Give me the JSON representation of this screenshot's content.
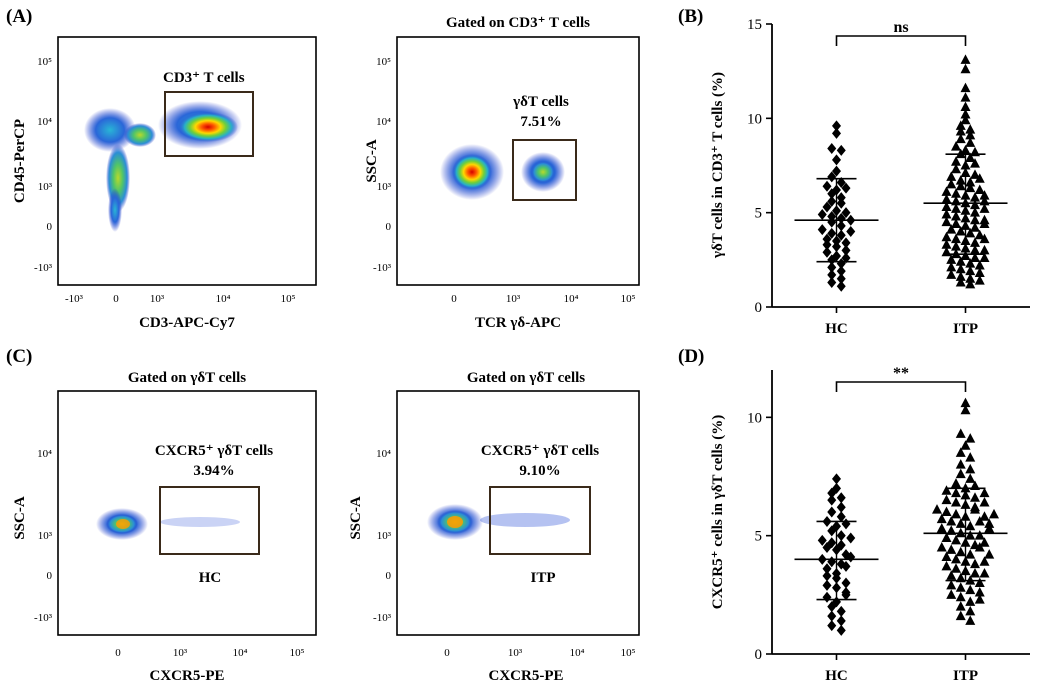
{
  "figure": {
    "panel_A_label": "(A)",
    "panel_B_label": "(B)",
    "panel_C_label": "(C)",
    "panel_D_label": "(D)"
  },
  "flow": [
    {
      "id": "A1",
      "title": "",
      "xlabel": "CD3-APC-Cy7",
      "ylabel": "CD45-PerCP",
      "gate_label": "CD3⁺ T cells",
      "gate_pct": "",
      "sample": "",
      "x_ticks": [
        "-10³",
        "0",
        "10³",
        "10⁴",
        "10⁵"
      ],
      "y_ticks": [
        "10⁵",
        "10⁴",
        "10³",
        "0",
        "-10³"
      ]
    },
    {
      "id": "A2",
      "title": "Gated on CD3⁺ T cells",
      "xlabel": "TCR γδ-APC",
      "ylabel": "SSC-A",
      "gate_label": "γδT cells",
      "gate_pct": "7.51%",
      "sample": "",
      "x_ticks": [
        "0",
        "10³",
        "10⁴",
        "10⁵"
      ],
      "y_ticks": [
        "10⁵",
        "10⁴",
        "10³",
        "0",
        "-10³"
      ]
    },
    {
      "id": "C1",
      "title": "Gated on γδT cells",
      "xlabel": "CXCR5-PE",
      "ylabel": "SSC-A",
      "gate_label": "CXCR5⁺ γδT cells",
      "gate_pct": "3.94%",
      "sample": "HC",
      "x_ticks": [
        "0",
        "10³",
        "10⁴",
        "10⁵"
      ],
      "y_ticks": [
        "10⁴",
        "10³",
        "0",
        "-10³"
      ]
    },
    {
      "id": "C2",
      "title": "Gated on γδT cells",
      "xlabel": "CXCR5-PE",
      "ylabel": "SSC-A",
      "gate_label": "CXCR5⁺ γδT cells",
      "gate_pct": "9.10%",
      "sample": "ITP",
      "x_ticks": [
        "0",
        "10³",
        "10⁴",
        "10⁵"
      ],
      "y_ticks": [
        "10⁴",
        "10³",
        "0",
        "-10³"
      ]
    }
  ],
  "chart_data": [
    {
      "id": "B",
      "type": "scatter",
      "title": "",
      "xlabel": "",
      "ylabel": "γδT cells in CD3⁺ T cells (%)",
      "categories": [
        "HC",
        "ITP"
      ],
      "ylim": [
        0,
        15
      ],
      "y_ticks": [
        0,
        5,
        10,
        15
      ],
      "significance": "ns",
      "series": [
        {
          "name": "HC",
          "marker": "diamond",
          "mean": 4.6,
          "sd_low": 2.4,
          "sd_high": 6.8,
          "values": [
            9.6,
            9.2,
            8.4,
            8.3,
            7.8,
            7.2,
            6.9,
            6.6,
            6.4,
            6.2,
            6.0,
            5.8,
            5.6,
            5.5,
            5.3,
            5.1,
            4.9,
            4.8,
            4.7,
            4.6,
            4.5,
            4.3,
            4.1,
            3.9,
            3.8,
            3.6,
            3.5,
            3.3,
            3.2,
            3.0,
            2.9,
            2.7,
            2.5,
            2.3,
            2.1,
            1.9,
            1.7,
            1.5,
            1.3,
            1.1,
            5.0,
            4.0,
            3.4,
            6.3,
            2.6
          ]
        },
        {
          "name": "ITP",
          "marker": "triangle",
          "mean": 5.5,
          "sd_low": 2.8,
          "sd_high": 8.1,
          "values": [
            13.1,
            12.6,
            11.6,
            11.1,
            10.6,
            10.2,
            9.9,
            9.6,
            9.3,
            9.1,
            8.9,
            8.7,
            8.5,
            8.3,
            8.1,
            7.9,
            7.7,
            7.5,
            7.3,
            7.1,
            6.9,
            6.7,
            6.5,
            6.4,
            6.3,
            6.2,
            6.1,
            6.0,
            5.9,
            5.8,
            5.7,
            5.6,
            5.5,
            5.4,
            5.3,
            5.2,
            5.1,
            5.0,
            4.9,
            4.8,
            4.7,
            4.6,
            4.5,
            4.4,
            4.3,
            4.2,
            4.1,
            4.0,
            3.9,
            3.8,
            3.7,
            3.6,
            3.5,
            3.4,
            3.3,
            3.2,
            3.1,
            3.0,
            2.9,
            2.8,
            2.7,
            2.6,
            2.5,
            2.4,
            2.3,
            2.2,
            2.1,
            2.0,
            1.9,
            1.8,
            1.7,
            1.6,
            1.5,
            1.4,
            1.3,
            1.2,
            6.6,
            5.9,
            5.2,
            4.6,
            7.0,
            3.6,
            4.4,
            6.8,
            5.6,
            2.6,
            3.0,
            7.6,
            8.2,
            9.4
          ]
        }
      ]
    },
    {
      "id": "D",
      "type": "scatter",
      "title": "",
      "xlabel": "",
      "ylabel": "CXCR5⁺ cells in γδT cells (%)",
      "categories": [
        "HC",
        "ITP"
      ],
      "ylim": [
        0,
        12
      ],
      "y_ticks": [
        0,
        5,
        10
      ],
      "significance": "**",
      "series": [
        {
          "name": "HC",
          "marker": "diamond",
          "mean": 4.0,
          "sd_low": 2.3,
          "sd_high": 5.6,
          "values": [
            7.4,
            7.0,
            6.8,
            6.5,
            6.2,
            6.0,
            5.8,
            5.6,
            5.4,
            5.2,
            5.0,
            4.8,
            4.7,
            4.6,
            4.5,
            4.4,
            4.2,
            4.0,
            3.9,
            3.8,
            3.6,
            3.4,
            3.3,
            3.2,
            3.0,
            2.9,
            2.8,
            2.6,
            2.4,
            2.2,
            2.0,
            1.8,
            1.6,
            1.4,
            1.2,
            1.0,
            5.5,
            4.1,
            3.7,
            2.5,
            6.6,
            4.9
          ]
        },
        {
          "name": "ITP",
          "marker": "triangle",
          "mean": 5.1,
          "sd_low": 3.1,
          "sd_high": 7.0,
          "values": [
            10.6,
            10.3,
            9.3,
            9.1,
            8.8,
            8.5,
            8.3,
            8.0,
            7.8,
            7.6,
            7.4,
            7.2,
            7.0,
            6.9,
            6.8,
            6.7,
            6.6,
            6.5,
            6.4,
            6.3,
            6.2,
            6.1,
            6.0,
            5.9,
            5.8,
            5.7,
            5.6,
            5.5,
            5.4,
            5.3,
            5.2,
            5.1,
            5.0,
            4.9,
            4.8,
            4.7,
            4.6,
            4.5,
            4.4,
            4.3,
            4.2,
            4.1,
            4.0,
            3.9,
            3.8,
            3.7,
            3.6,
            3.5,
            3.4,
            3.3,
            3.2,
            3.1,
            3.0,
            2.9,
            2.8,
            2.7,
            2.6,
            2.5,
            2.4,
            2.2,
            2.0,
            1.8,
            1.6,
            1.4,
            5.6,
            5.0,
            4.5,
            6.1,
            5.3,
            3.9,
            7.1,
            4.2,
            5.8,
            6.4,
            2.3,
            3.4,
            4.7,
            5.5,
            6.8,
            5.9
          ]
        }
      ]
    }
  ]
}
